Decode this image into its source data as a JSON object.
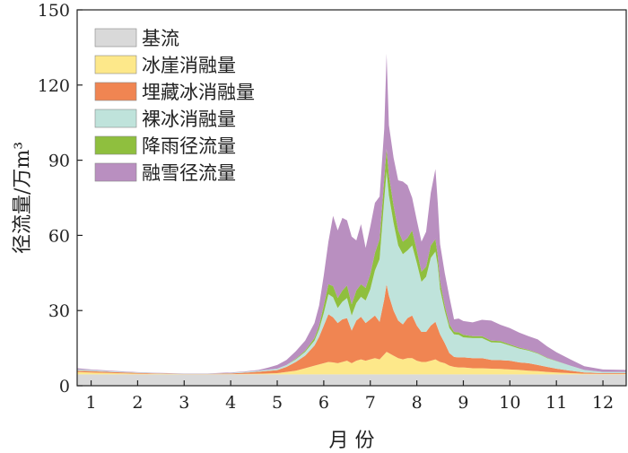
{
  "chart_data": {
    "type": "area",
    "stacked": true,
    "xlabel": "月 份",
    "ylabel": "径流量/万m³",
    "xticks": [
      1,
      2,
      3,
      4,
      5,
      6,
      7,
      8,
      9,
      10,
      11,
      12
    ],
    "xlim": [
      0.7,
      12.5
    ],
    "ylim": [
      0,
      150
    ],
    "yticks": [
      0,
      30,
      60,
      90,
      120,
      150
    ],
    "legend_position": "top-left",
    "grid": false,
    "x": [
      0.7,
      1.0,
      1.5,
      2.0,
      2.5,
      3.0,
      3.5,
      4.0,
      4.3,
      4.6,
      4.8,
      5.0,
      5.2,
      5.4,
      5.6,
      5.8,
      5.9,
      6.0,
      6.1,
      6.2,
      6.3,
      6.4,
      6.5,
      6.6,
      6.7,
      6.8,
      6.9,
      7.0,
      7.1,
      7.2,
      7.3,
      7.35,
      7.4,
      7.5,
      7.6,
      7.7,
      7.8,
      7.9,
      8.0,
      8.1,
      8.2,
      8.3,
      8.4,
      8.45,
      8.5,
      8.6,
      8.7,
      8.8,
      8.9,
      9.0,
      9.2,
      9.4,
      9.6,
      9.8,
      10.0,
      10.2,
      10.4,
      10.6,
      10.8,
      11.0,
      11.3,
      11.6,
      12.0,
      12.5
    ],
    "series": [
      {
        "name": "基流",
        "color": "#d9d9d9",
        "values": [
          4.5,
          4.5,
          4.5,
          4.5,
          4.5,
          4.5,
          4.5,
          4.5,
          4.5,
          4.5,
          4.5,
          4.5,
          4.5,
          4.5,
          4.5,
          4.5,
          4.5,
          4.5,
          4.5,
          4.5,
          4.5,
          4.5,
          4.5,
          4.5,
          4.5,
          4.5,
          4.5,
          4.5,
          4.5,
          4.5,
          4.5,
          4.5,
          4.5,
          4.5,
          4.5,
          4.5,
          4.5,
          4.5,
          4.5,
          4.5,
          4.5,
          4.5,
          4.5,
          4.5,
          4.5,
          4.5,
          4.5,
          4.5,
          4.5,
          4.5,
          4.5,
          4.5,
          4.5,
          4.5,
          4.5,
          4.5,
          4.5,
          4.5,
          4.5,
          4.5,
          4.5,
          4.5,
          4.5,
          4.5
        ]
      },
      {
        "name": "冰崖消融量",
        "color": "#fde88a",
        "values": [
          1.0,
          0.8,
          0.5,
          0.3,
          0.2,
          0.1,
          0.1,
          0.1,
          0.2,
          0.3,
          0.4,
          0.5,
          1.0,
          1.5,
          2.5,
          3.5,
          4.0,
          4.5,
          5.0,
          4.8,
          4.5,
          5.0,
          5.5,
          4.5,
          5.5,
          6.0,
          5.5,
          6.0,
          6.5,
          6.0,
          8.0,
          9.0,
          8.5,
          7.5,
          6.5,
          6.0,
          6.5,
          6.5,
          5.5,
          5.0,
          5.0,
          5.5,
          6.0,
          5.5,
          5.0,
          4.5,
          3.5,
          3.0,
          2.8,
          2.8,
          2.5,
          2.5,
          2.3,
          2.2,
          2.0,
          1.8,
          1.5,
          1.3,
          1.0,
          0.8,
          0.5,
          0.3,
          0.2,
          0.2
        ]
      },
      {
        "name": "埋藏冰消融量",
        "color": "#f08552",
        "values": [
          0.5,
          0.5,
          0.4,
          0.3,
          0.2,
          0.1,
          0.1,
          0.3,
          0.5,
          0.8,
          1.0,
          1.2,
          2.0,
          3.5,
          5.0,
          8.0,
          11.0,
          15.0,
          19.0,
          18.0,
          16.0,
          17.0,
          17.0,
          13.0,
          16.0,
          17.0,
          15.0,
          16.0,
          17.0,
          15.0,
          22.0,
          27.0,
          23.0,
          18.0,
          15.0,
          14.0,
          16.0,
          17.0,
          14.0,
          12.0,
          12.0,
          14.0,
          15.0,
          13.0,
          11.0,
          8.0,
          5.0,
          4.0,
          4.0,
          4.0,
          4.0,
          4.0,
          3.5,
          3.5,
          3.5,
          3.0,
          3.0,
          2.5,
          2.0,
          1.5,
          1.0,
          0.5,
          0.3,
          0.3
        ]
      },
      {
        "name": "裸冰消融量",
        "color": "#bfe3db",
        "values": [
          0.5,
          0.4,
          0.3,
          0.2,
          0.1,
          0.1,
          0.1,
          0.2,
          0.3,
          0.4,
          0.5,
          0.6,
          0.8,
          1.0,
          1.5,
          2.0,
          3.0,
          5.0,
          8.0,
          8.0,
          6.0,
          7.0,
          8.0,
          6.0,
          7.0,
          8.0,
          9.0,
          12.0,
          18.0,
          25.0,
          40.0,
          45.0,
          40.0,
          35.0,
          30.0,
          28.0,
          27.0,
          28.0,
          25.0,
          20.0,
          22.0,
          27.0,
          28.0,
          25.0,
          18.0,
          13.0,
          10.0,
          9.0,
          9.0,
          8.0,
          8.0,
          8.0,
          7.0,
          7.0,
          6.0,
          5.5,
          5.0,
          4.5,
          3.5,
          3.0,
          2.0,
          1.0,
          0.5,
          0.5
        ]
      },
      {
        "name": "降雨径流量",
        "color": "#8fbf3e",
        "values": [
          0,
          0,
          0,
          0,
          0,
          0,
          0,
          0,
          0,
          0,
          0,
          0,
          0,
          0.3,
          0.5,
          1.0,
          1.5,
          3.0,
          4.0,
          4.5,
          4.0,
          4.5,
          5.0,
          4.5,
          5.0,
          5.0,
          5.0,
          6.0,
          7.0,
          8.0,
          8.0,
          9.0,
          8.0,
          7.0,
          6.0,
          5.0,
          5.0,
          6.0,
          5.0,
          4.0,
          4.0,
          5.0,
          5.0,
          4.0,
          3.0,
          2.0,
          1.5,
          1.0,
          1.0,
          1.0,
          0.8,
          0.8,
          0.7,
          0.6,
          0.5,
          0.4,
          0.3,
          0.2,
          0.2,
          0.1,
          0,
          0,
          0,
          0
        ]
      },
      {
        "name": "融雪径流量",
        "color": "#b98fc0",
        "values": [
          0.5,
          0.3,
          0.2,
          0.1,
          0.1,
          0.1,
          0.1,
          0.2,
          0.2,
          0.3,
          0.8,
          1.5,
          2.0,
          3.0,
          4.0,
          6.0,
          8.0,
          12.0,
          17.0,
          28.0,
          27.0,
          29.0,
          26.0,
          27.0,
          20.0,
          24.0,
          16.0,
          19.0,
          20.0,
          17.0,
          20.0,
          38.0,
          20.0,
          19.0,
          20.0,
          24.0,
          21.0,
          13.0,
          12.0,
          12.0,
          14.0,
          21.0,
          28.0,
          21.0,
          15.0,
          13.0,
          11.0,
          5.0,
          5.5,
          5.5,
          5.5,
          6.5,
          8.0,
          6.5,
          6.5,
          6.0,
          5.5,
          5.5,
          4.5,
          3.5,
          2.5,
          1.5,
          1.0,
          0.8
        ]
      }
    ]
  }
}
